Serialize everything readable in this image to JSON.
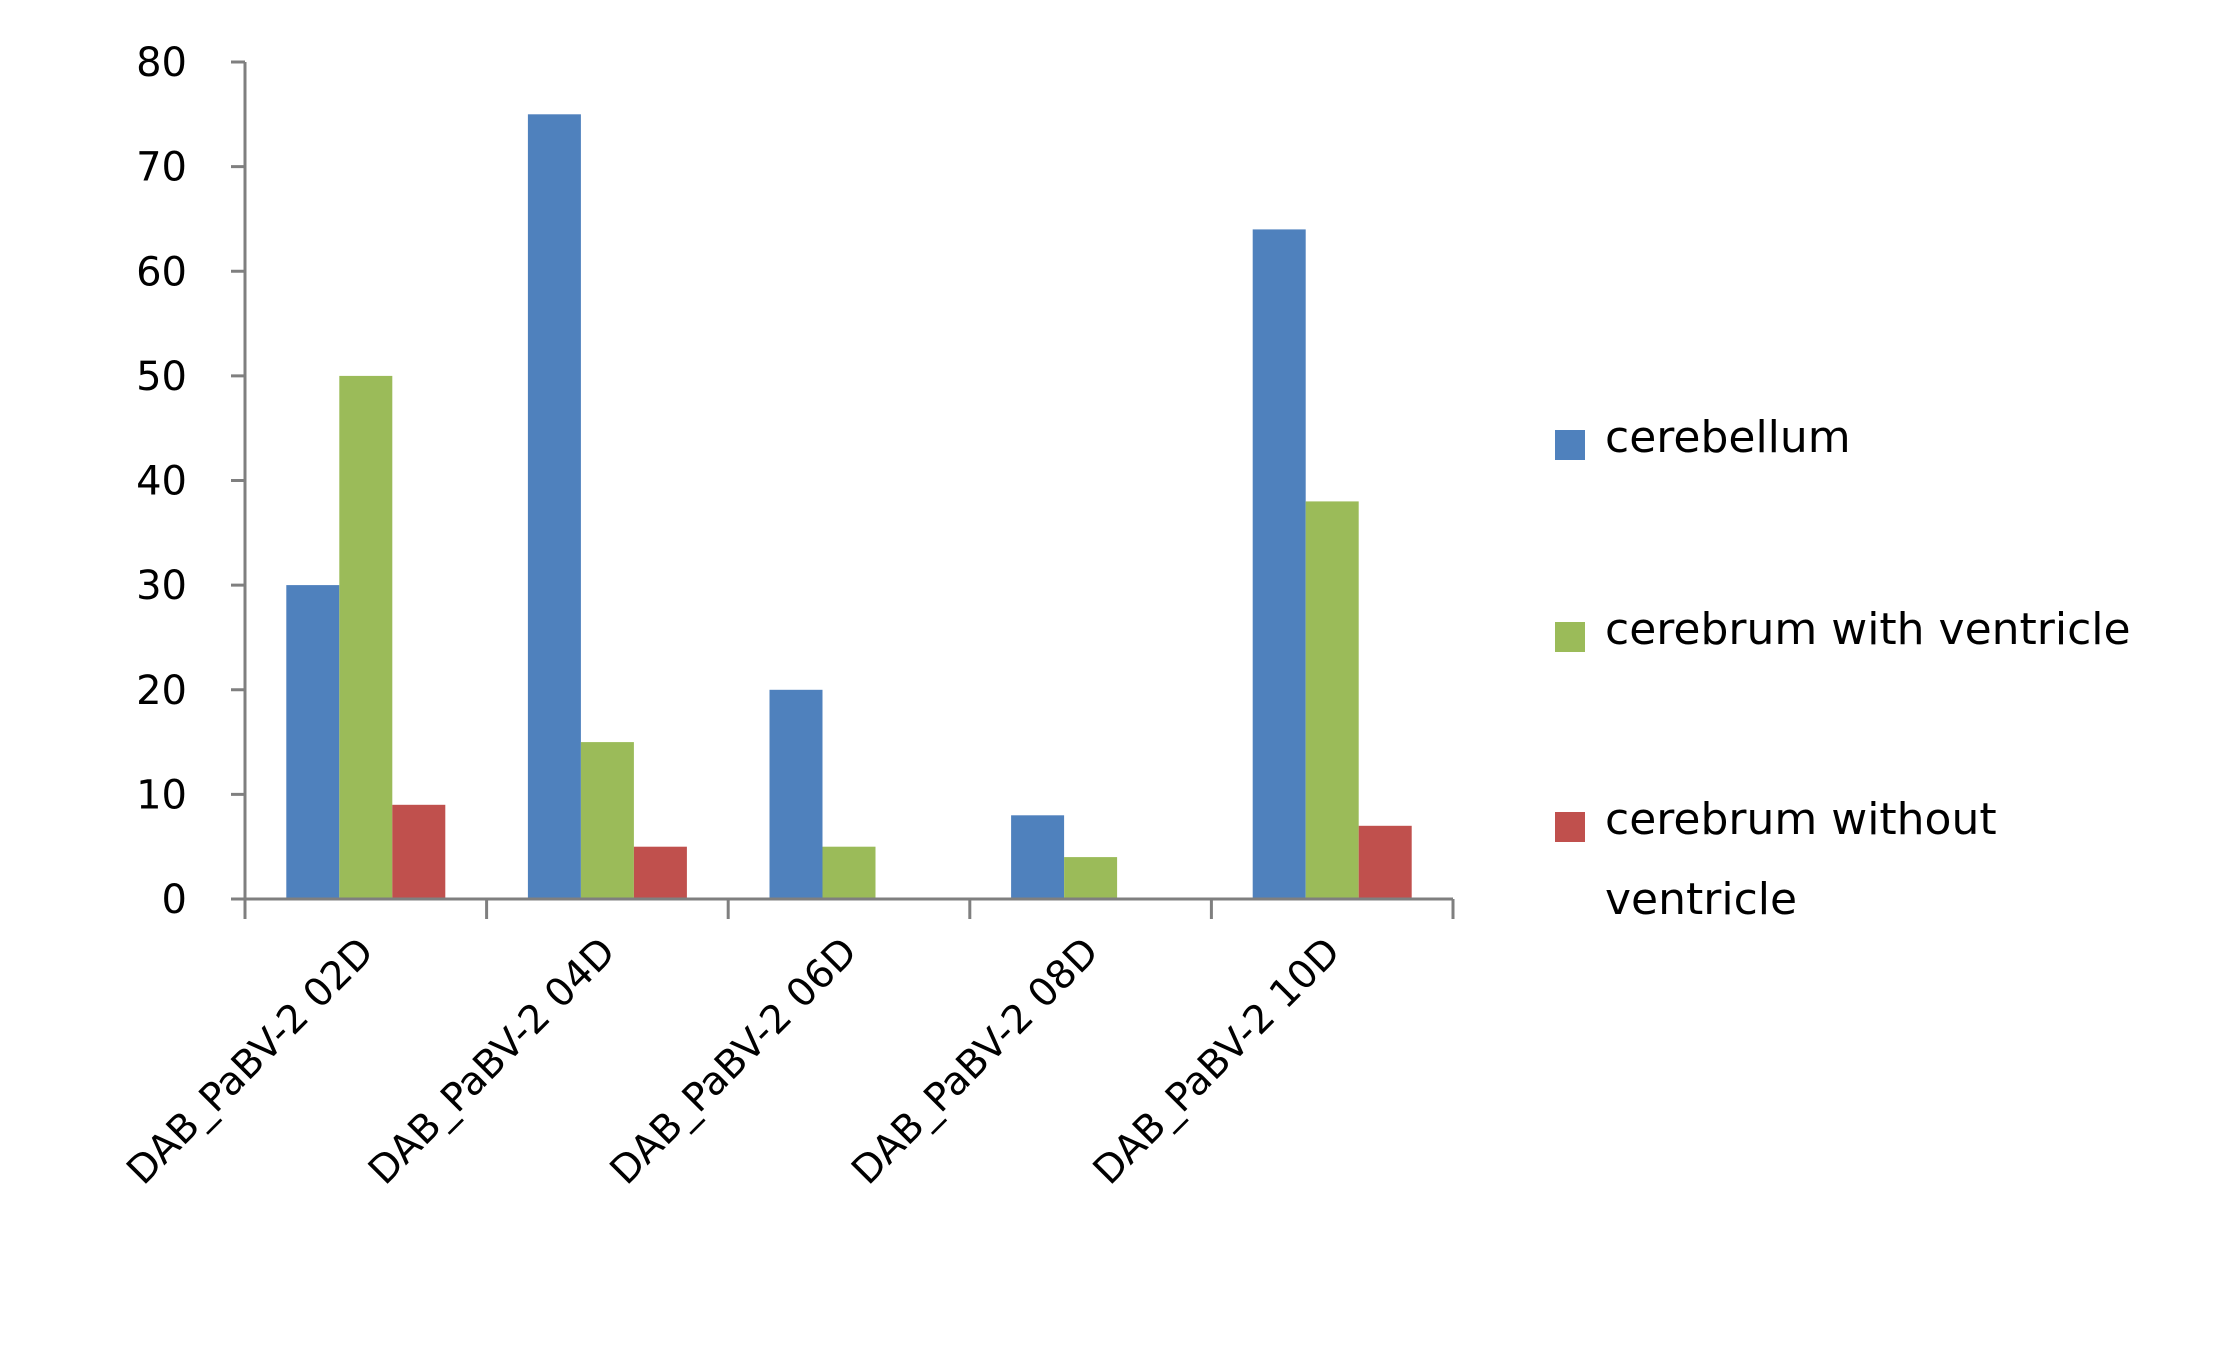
{
  "chart_data": {
    "type": "bar",
    "title": "",
    "xlabel": "",
    "ylabel": "",
    "ylim": [
      0,
      80
    ],
    "yticks": [
      0,
      10,
      20,
      30,
      40,
      50,
      60,
      70,
      80
    ],
    "grid": false,
    "legend_position": "right",
    "categories": [
      "DAB_PaBV-2 02D",
      "DAB_PaBV-2 04D",
      "DAB_PaBV-2 06D",
      "DAB_PaBV-2 08D",
      "DAB_PaBV-2 10D"
    ],
    "series": [
      {
        "name": "cerebellum",
        "color": "#4F81BD",
        "values": [
          30,
          75,
          20,
          8,
          64
        ]
      },
      {
        "name": "cerebrum with ventricle",
        "color": "#9BBB59",
        "values": [
          50,
          15,
          5,
          4,
          38
        ]
      },
      {
        "name": "cerebrum without ventricle",
        "color": "#C0504D",
        "values": [
          9,
          5,
          0,
          0,
          7
        ]
      }
    ]
  }
}
